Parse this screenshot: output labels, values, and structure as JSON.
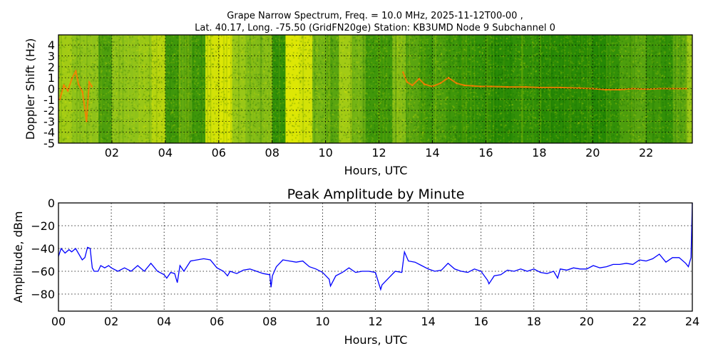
{
  "chart_data": [
    {
      "type": "heatmap",
      "title_line1": "Grape Narrow Spectrum, Freq. = 10.0 MHz, 2025-11-12T00-00 ,",
      "title_line2": "Lat.  40.17, Long. -75.50 (GridFN20ge) Station: KB3UMD Node 9 Subchannel 0",
      "xlabel": "Hours, UTC",
      "ylabel": "Doppler Shift (Hz)",
      "xlim": [
        0,
        23.73
      ],
      "ylim": [
        -5,
        4.93
      ],
      "xticks": [
        2,
        4,
        6,
        8,
        10,
        12,
        14,
        16,
        18,
        20,
        22
      ],
      "xtick_labels": [
        "02",
        "04",
        "06",
        "08",
        "10",
        "12",
        "14",
        "16",
        "18",
        "20",
        "22"
      ],
      "yticks": [
        4,
        3,
        2,
        1,
        0,
        -1,
        -2,
        -3,
        -4,
        -5
      ],
      "ytick_labels": [
        "4",
        "3",
        "2",
        "1",
        "0",
        "-1",
        "-2",
        "-3",
        "-4",
        "-5"
      ],
      "grid": true,
      "colors": {
        "low": "#0a7a00",
        "mid": "#8fc21a",
        "high": "#f0f000",
        "peak": "#ff7a00"
      },
      "band_hours": [
        0,
        0.5,
        1,
        1.5,
        2,
        2.5,
        3,
        3.5,
        4,
        4.5,
        5,
        5.5,
        6,
        6.5,
        7,
        7.5,
        8,
        8.5,
        9,
        9.5,
        10,
        10.5,
        11,
        11.5,
        12,
        12.5,
        13,
        13.5,
        14,
        14.5,
        15,
        15.5,
        16,
        16.5,
        17,
        17.5,
        18,
        18.5,
        19,
        19.5,
        20,
        20.5,
        21,
        21.5,
        22,
        22.5,
        23,
        23.5
      ],
      "band_intensity": [
        0.6,
        0.5,
        0.5,
        0.25,
        0.5,
        0.5,
        0.55,
        0.7,
        0.2,
        0.3,
        0.2,
        0.85,
        0.9,
        0.55,
        0.45,
        0.45,
        0.15,
        0.9,
        0.85,
        0.4,
        0.3,
        0.6,
        0.4,
        0.2,
        0.2,
        0.45,
        0.3,
        0.2,
        0.25,
        0.2,
        0.15,
        0.15,
        0.12,
        0.12,
        0.15,
        0.15,
        0.12,
        0.12,
        0.12,
        0.12,
        0.1,
        0.15,
        0.25,
        0.3,
        0.2,
        0.15,
        0.3,
        0.55
      ],
      "trace": {
        "hours": [
          0.05,
          0.2,
          0.35,
          0.5,
          0.65,
          0.75,
          0.9,
          1.05,
          1.15,
          1.25,
          12.9,
          13.05,
          13.25,
          13.5,
          13.7,
          14.0,
          14.3,
          14.6,
          14.9,
          15.2,
          15.5,
          15.8,
          16.2,
          16.8,
          17.5,
          18.0,
          18.8,
          19.5,
          20.0,
          20.5,
          21.0,
          21.5,
          22.0,
          22.5,
          23.0,
          23.5
        ],
        "hz": [
          -1.0,
          0.3,
          -0.2,
          0.9,
          1.6,
          0.4,
          -0.3,
          -3.0,
          0.6,
          0.2,
          1.5,
          0.6,
          0.3,
          0.9,
          0.4,
          0.2,
          0.5,
          1.0,
          0.5,
          0.3,
          0.25,
          0.2,
          0.2,
          0.15,
          0.15,
          0.1,
          0.1,
          0.05,
          0.0,
          -0.1,
          -0.1,
          0.0,
          -0.05,
          0.0,
          0.0,
          0.0
        ]
      }
    },
    {
      "type": "line",
      "title": "Peak Amplitude by Minute",
      "xlabel": "Hours, UTC",
      "ylabel": "Amplitude, dBm",
      "xlim": [
        0,
        24
      ],
      "ylim": [
        -95,
        0
      ],
      "xticks": [
        0,
        2,
        4,
        6,
        8,
        10,
        12,
        14,
        16,
        18,
        20,
        22,
        24
      ],
      "xtick_labels": [
        "00",
        "02",
        "04",
        "06",
        "08",
        "10",
        "12",
        "14",
        "16",
        "18",
        "20",
        "22",
        "24"
      ],
      "yticks": [
        0,
        -20,
        -40,
        -60,
        -80
      ],
      "ytick_labels": [
        "0",
        "−20",
        "−40",
        "−60",
        "−80"
      ],
      "grid": true,
      "color": "#0000ff",
      "series": [
        {
          "name": "Peak Amplitude",
          "x": [
            0,
            0.1,
            0.25,
            0.4,
            0.5,
            0.65,
            0.75,
            0.9,
            1.0,
            1.1,
            1.2,
            1.28,
            1.35,
            1.5,
            1.6,
            1.75,
            1.9,
            2,
            2.25,
            2.5,
            2.75,
            3,
            3.25,
            3.5,
            3.75,
            4,
            4.1,
            4.25,
            4.4,
            4.5,
            4.6,
            4.75,
            5,
            5.25,
            5.5,
            5.75,
            6,
            6.25,
            6.4,
            6.5,
            6.75,
            7,
            7.25,
            7.5,
            7.75,
            8,
            8.05,
            8.1,
            8.25,
            8.5,
            8.75,
            9,
            9.25,
            9.5,
            9.75,
            10,
            10.25,
            10.3,
            10.5,
            10.75,
            11,
            11.25,
            11.5,
            11.75,
            12,
            12.2,
            12.25,
            12.5,
            12.75,
            13,
            13.1,
            13.25,
            13.5,
            13.75,
            14,
            14.25,
            14.5,
            14.75,
            15,
            15.25,
            15.5,
            15.75,
            16,
            16.25,
            16.3,
            16.5,
            16.75,
            17,
            17.25,
            17.5,
            17.75,
            18,
            18.25,
            18.5,
            18.75,
            18.9,
            19,
            19.25,
            19.5,
            19.75,
            20,
            20.25,
            20.5,
            20.75,
            21,
            21.25,
            21.5,
            21.75,
            22,
            22.25,
            22.5,
            22.75,
            23,
            23.25,
            23.5,
            23.75,
            23.85,
            23.95,
            24
          ],
          "y": [
            -47,
            -40,
            -44,
            -41,
            -43,
            -40,
            -44,
            -50,
            -48,
            -39,
            -40,
            -57,
            -60,
            -60,
            -55,
            -57,
            -55,
            -57,
            -60,
            -57,
            -60,
            -55,
            -60,
            -53,
            -60,
            -63,
            -66,
            -61,
            -62,
            -70,
            -55,
            -60,
            -51,
            -50,
            -49,
            -50,
            -57,
            -60,
            -64,
            -60,
            -62,
            -59,
            -58,
            -60,
            -62,
            -63,
            -74,
            -64,
            -56,
            -50,
            -51,
            -52,
            -51,
            -56,
            -58,
            -61,
            -67,
            -73,
            -64,
            -61,
            -57,
            -61,
            -60,
            -60,
            -61,
            -76,
            -72,
            -66,
            -60,
            -61,
            -43,
            -51,
            -52,
            -55,
            -58,
            -60,
            -59,
            -53,
            -58,
            -60,
            -61,
            -58,
            -60,
            -68,
            -71,
            -64,
            -63,
            -59,
            -60,
            -58,
            -60,
            -58,
            -61,
            -62,
            -60,
            -66,
            -58,
            -59,
            -57,
            -58,
            -58,
            -55,
            -57,
            -56,
            -54,
            -54,
            -53,
            -54,
            -50,
            -51,
            -49,
            -45,
            -52,
            -48,
            -48,
            -53,
            -56,
            -48,
            0
          ]
        }
      ]
    }
  ]
}
